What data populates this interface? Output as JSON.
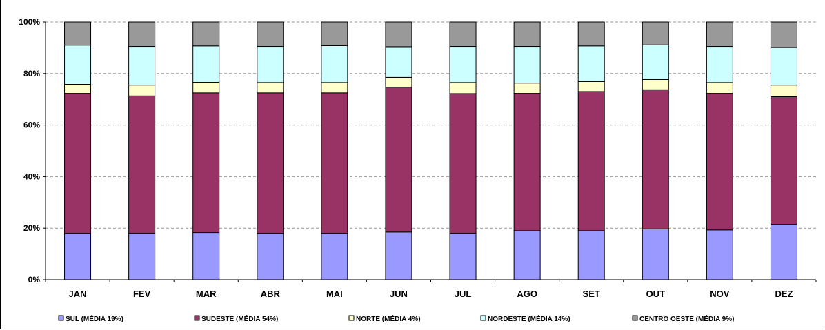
{
  "chart_data": {
    "type": "bar",
    "stacked": true,
    "percent_stacked": true,
    "categories": [
      "JAN",
      "FEV",
      "MAR",
      "ABR",
      "MAI",
      "JUN",
      "JUL",
      "AGO",
      "SET",
      "OUT",
      "NOV",
      "DEZ"
    ],
    "y_ticks": [
      "0%",
      "20%",
      "40%",
      "60%",
      "80%",
      "100%"
    ],
    "ylim": [
      0,
      100
    ],
    "grid": "horizontal dashed",
    "legend_position": "bottom",
    "series": [
      {
        "name": "SUL (MÉDIA 19%)",
        "color": "#9999ff",
        "values": [
          18,
          18,
          18.3,
          18,
          18,
          18.5,
          18,
          19,
          19,
          19.7,
          19.3,
          21.5
        ]
      },
      {
        "name": "SUDESTE (MÉDIA 54%)",
        "color": "#993366",
        "values": [
          54.3,
          53.3,
          54.2,
          54.5,
          54.5,
          56.2,
          54.2,
          53.3,
          54,
          54,
          53,
          49.5
        ]
      },
      {
        "name": "NORTE (MÉDIA 4%)",
        "color": "#ffffcc",
        "values": [
          3.5,
          4.2,
          4.1,
          4,
          4,
          3.8,
          4.3,
          4,
          3.9,
          4,
          4.2,
          4.5
        ]
      },
      {
        "name": "NORDESTE (MÉDIA 14%)",
        "color": "#ccffff",
        "values": [
          15.2,
          15,
          14.1,
          14,
          14.3,
          11.9,
          14,
          14.2,
          13.8,
          13.4,
          14,
          14.6
        ]
      },
      {
        "name": "CENTRO OESTE (MÉDIA 9%)",
        "color": "#999999",
        "values": [
          9,
          9.5,
          9.3,
          9.5,
          9.2,
          9.6,
          9.5,
          9.5,
          9.3,
          8.9,
          9.5,
          9.9
        ]
      }
    ]
  }
}
